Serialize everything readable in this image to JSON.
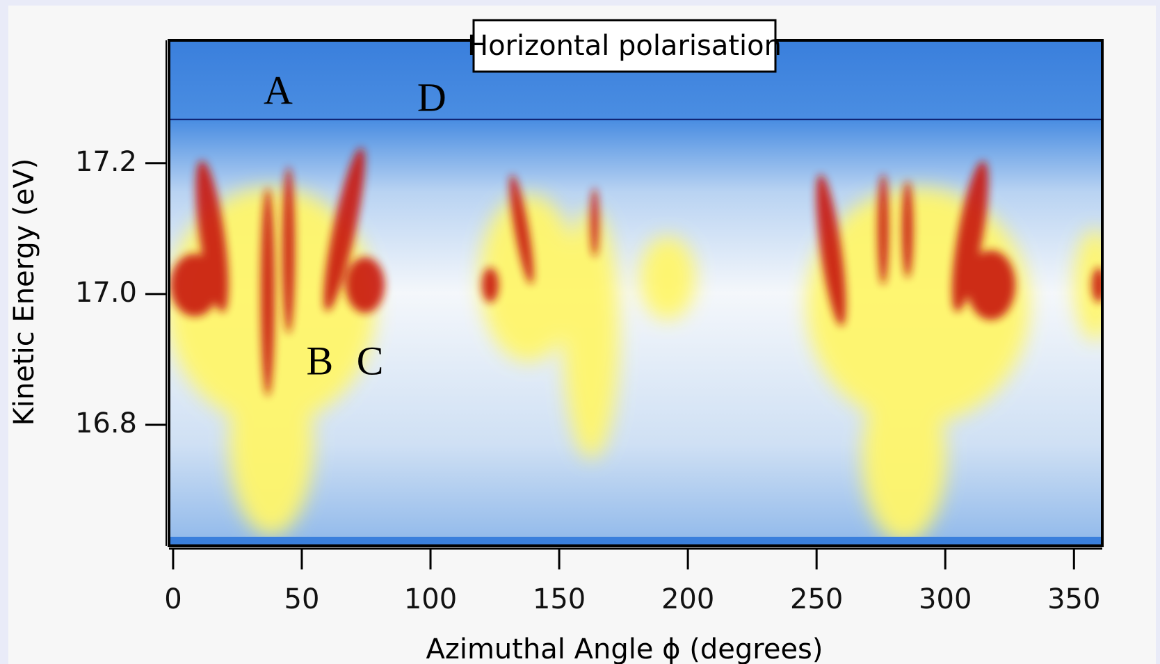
{
  "chart_data": {
    "type": "heatmap",
    "title": "Horizontal polarisation",
    "x_label": "Azimuthal Angle ϕ (degrees)",
    "y_label": "Kinetic Energy (eV)",
    "xlim": [
      -1.6,
      361
    ],
    "ylim": [
      16.615,
      17.388
    ],
    "xticks": [
      0,
      50,
      100,
      150,
      200,
      250,
      300,
      350
    ],
    "yticks": [
      {
        "value": 17.2,
        "label": "17.2"
      },
      {
        "value": 17.0,
        "label": "17.0"
      },
      {
        "value": 16.8,
        "label": "16.8"
      }
    ],
    "hline": 17.267,
    "annotations": [
      {
        "text": "A",
        "x": 40.8,
        "y": 17.305
      },
      {
        "text": "D",
        "x": 100.5,
        "y": 17.294
      },
      {
        "text": "B",
        "x": 57,
        "y": 16.891
      },
      {
        "text": "C",
        "x": 76.5,
        "y": 16.891
      }
    ]
  }
}
